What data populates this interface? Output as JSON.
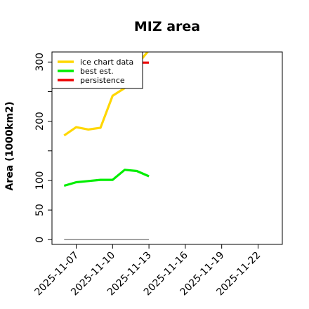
{
  "chart_data": {
    "type": "line",
    "title": "MIZ area",
    "xlabel": "",
    "ylabel": "Area (1000km2)",
    "xlim": [
      "2025-11-05",
      "2025-11-24"
    ],
    "ylim": [
      -8,
      317
    ],
    "yticks": [
      0,
      50,
      100,
      200,
      300
    ],
    "yticks_minor": [
      150,
      250
    ],
    "xticks": [
      "2025-11-07",
      "2025-11-10",
      "2025-11-13",
      "2025-11-16",
      "2025-11-19",
      "2025-11-22"
    ],
    "legend": {
      "position": "top-left"
    },
    "grid": false,
    "series": [
      {
        "name": "ice chart data",
        "color": "#FFD700",
        "x": [
          "2025-11-06",
          "2025-11-07",
          "2025-11-08",
          "2025-11-09",
          "2025-11-10",
          "2025-11-11",
          "2025-11-12",
          "2025-11-13"
        ],
        "y": [
          176,
          190,
          186,
          189,
          243,
          256,
          295,
          320
        ]
      },
      {
        "name": "best est.",
        "color": "#00EE00",
        "x": [
          "2025-11-06",
          "2025-11-07",
          "2025-11-08",
          "2025-11-09",
          "2025-11-10",
          "2025-11-11",
          "2025-11-12",
          "2025-11-13"
        ],
        "y": [
          91,
          97,
          99,
          101,
          101,
          118,
          116,
          107
        ]
      },
      {
        "name": "persistence",
        "color": "#EE0000",
        "x": [
          "2025-11-11",
          "2025-11-13"
        ],
        "y": [
          299,
          299
        ]
      }
    ],
    "baseline": {
      "color": "#888888",
      "x": [
        "2025-11-06",
        "2025-11-13"
      ],
      "y": [
        0,
        0
      ]
    }
  }
}
